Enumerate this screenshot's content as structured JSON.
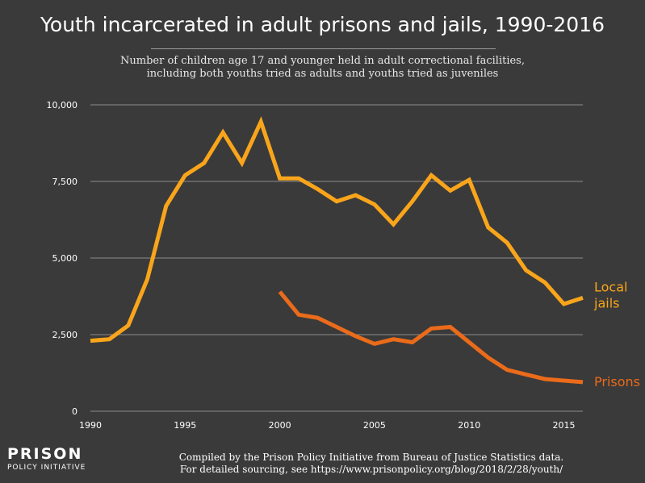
{
  "header": {
    "title": "Youth incarcerated in adult prisons and jails, 1990-2016",
    "subtitle_line1": "Number of children age 17 and younger held in adult correctional facilities,",
    "subtitle_line2": "including both youths tried as adults and youths tried as juveniles"
  },
  "footer": {
    "logo_top": "PRISON",
    "logo_bottom": "POLICY INITIATIVE",
    "source_line1": "Compiled by the Prison Policy Initiative from Bureau of Justice Statistics data.",
    "source_line2": "For detailed sourcing, see https://www.prisonpolicy.org/blog/2018/2/28/youth/"
  },
  "chart_data": {
    "type": "line",
    "title": "Youth incarcerated in adult prisons and jails, 1990-2016",
    "xlabel": "",
    "ylabel": "",
    "xlim": [
      1990,
      2016
    ],
    "ylim": [
      0,
      10000
    ],
    "x_ticks": [
      "1990",
      "1995",
      "2000",
      "2005",
      "2010",
      "2015"
    ],
    "y_ticks": [
      "0",
      "2,500",
      "5,000",
      "7,500",
      "10,000"
    ],
    "grid": true,
    "legend": "direct labels at line ends (right)",
    "series": [
      {
        "name": "Local jails",
        "label_line1": "Local",
        "label_line2": "jails",
        "color": "#f9a51b",
        "x": [
          1990,
          1991,
          1992,
          1993,
          1994,
          1995,
          1996,
          1997,
          1998,
          1999,
          2000,
          2001,
          2002,
          2003,
          2004,
          2005,
          2006,
          2007,
          2008,
          2009,
          2010,
          2011,
          2012,
          2013,
          2014,
          2015,
          2016
        ],
        "values": [
          2300,
          2350,
          2800,
          4300,
          6700,
          7700,
          8100,
          9100,
          8100,
          9450,
          7600,
          7600,
          7250,
          6850,
          7050,
          6750,
          6100,
          6850,
          7700,
          7200,
          7550,
          6000,
          5500,
          4600,
          4200,
          3500,
          3700
        ]
      },
      {
        "name": "Prisons",
        "label_line1": "Prisons",
        "color": "#ea6b1a",
        "x": [
          2000,
          2001,
          2002,
          2003,
          2004,
          2005,
          2006,
          2007,
          2008,
          2009,
          2010,
          2011,
          2012,
          2013,
          2014,
          2015,
          2016
        ],
        "values": [
          3900,
          3150,
          3050,
          2750,
          2450,
          2200,
          2350,
          2250,
          2700,
          2750,
          2250,
          1750,
          1350,
          1200,
          1050,
          1000,
          950
        ]
      }
    ]
  }
}
